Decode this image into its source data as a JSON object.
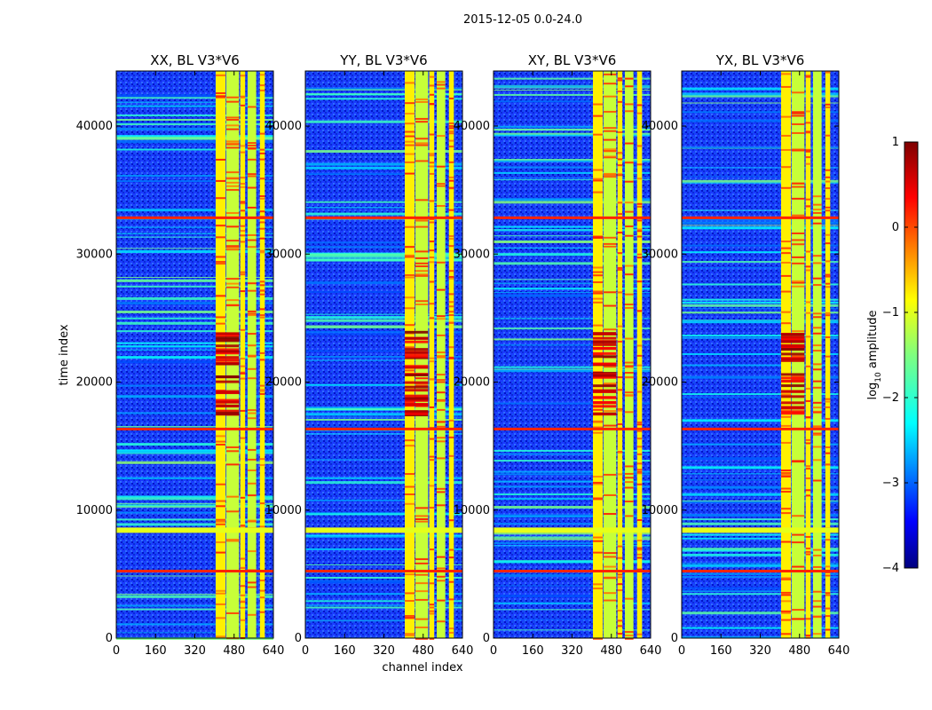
{
  "chart_data": {
    "type": "heatmap",
    "suptitle": "2015-12-05 0.0-24.0",
    "panels": [
      {
        "title": "XX, BL V3*V6",
        "pol": "XX"
      },
      {
        "title": "YY, BL V3*V6",
        "pol": "YY"
      },
      {
        "title": "XY, BL V3*V6",
        "pol": "XY"
      },
      {
        "title": "YX, BL V3*V6",
        "pol": "YX"
      }
    ],
    "xlabel": "channel index",
    "ylabel": "time index",
    "x_ticks": [
      0,
      160,
      320,
      480,
      640
    ],
    "x_tick_labels": [
      "0",
      "160",
      "320",
      "480",
      "640"
    ],
    "xlim": [
      0,
      640
    ],
    "y_ticks": [
      0,
      10000,
      20000,
      30000,
      40000
    ],
    "y_tick_labels": [
      "0",
      "10000",
      "20000",
      "30000",
      "40000"
    ],
    "ylim": [
      0,
      44300
    ],
    "colorbar": {
      "label_prefix": "log",
      "label_sub": "10",
      "label_suffix": " amplitude",
      "range": [
        -4,
        1
      ],
      "ticks": [
        1,
        0,
        -1,
        -2,
        -3,
        -4
      ],
      "tick_labels": [
        "1",
        "0",
        "−1",
        "−2",
        "−3",
        "−4"
      ],
      "colormap": "jet"
    },
    "features": {
      "rfi_channel_bands": [
        [
          405,
          445
        ],
        [
          448,
          500
        ],
        [
          505,
          525
        ],
        [
          535,
          570
        ],
        [
          585,
          605
        ]
      ],
      "strong_time_rows": [
        32800,
        16300,
        8500,
        5200
      ],
      "burst_time_range": [
        17500,
        24000
      ],
      "burst_channel_range": [
        405,
        500
      ],
      "background_log_amplitude": -3,
      "band_log_amplitude": -1
    }
  }
}
